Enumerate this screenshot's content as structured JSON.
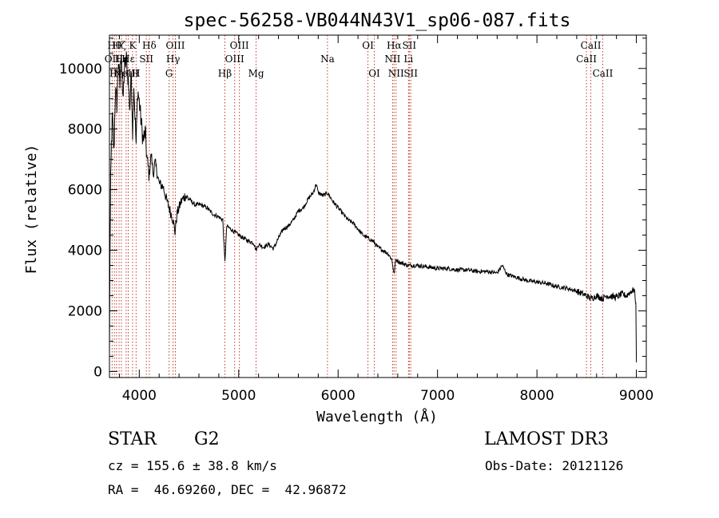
{
  "chart_data": {
    "type": "line",
    "title": "spec-56258-VB044N43V1_sp06-087.fits",
    "xlabel": "Wavelength (Å)",
    "ylabel": "Flux (relative)",
    "xlim": [
      3700,
      9100
    ],
    "ylim": [
      -200,
      11100
    ],
    "xticks": [
      4000,
      5000,
      6000,
      7000,
      8000,
      9000
    ],
    "yticks": [
      0,
      2000,
      4000,
      6000,
      8000,
      10000
    ],
    "spectrum_anchors": [
      [
        3700,
        400
      ],
      [
        3705,
        3800
      ],
      [
        3712,
        6200
      ],
      [
        3720,
        7500
      ],
      [
        3730,
        8400
      ],
      [
        3745,
        7200
      ],
      [
        3760,
        9300
      ],
      [
        3775,
        8800
      ],
      [
        3790,
        10300
      ],
      [
        3805,
        9400
      ],
      [
        3820,
        10700
      ],
      [
        3835,
        8800
      ],
      [
        3850,
        10000
      ],
      [
        3870,
        10300
      ],
      [
        3890,
        9600
      ],
      [
        3905,
        8700
      ],
      [
        3920,
        9900
      ],
      [
        3933,
        7900
      ],
      [
        3945,
        9500
      ],
      [
        3968,
        7500
      ],
      [
        3985,
        9300
      ],
      [
        4000,
        8900
      ],
      [
        4020,
        8200
      ],
      [
        4040,
        7600
      ],
      [
        4060,
        7900
      ],
      [
        4080,
        6900
      ],
      [
        4101,
        6500
      ],
      [
        4120,
        7200
      ],
      [
        4140,
        6500
      ],
      [
        4160,
        6900
      ],
      [
        4200,
        6200
      ],
      [
        4240,
        6100
      ],
      [
        4280,
        5600
      ],
      [
        4300,
        5400
      ],
      [
        4320,
        5200
      ],
      [
        4340,
        5000
      ],
      [
        4360,
        4600
      ],
      [
        4380,
        5200
      ],
      [
        4420,
        5600
      ],
      [
        4460,
        5800
      ],
      [
        4500,
        5700
      ],
      [
        4560,
        5500
      ],
      [
        4620,
        5500
      ],
      [
        4680,
        5400
      ],
      [
        4740,
        5200
      ],
      [
        4800,
        5100
      ],
      [
        4840,
        5000
      ],
      [
        4861,
        3600
      ],
      [
        4880,
        4800
      ],
      [
        4920,
        4700
      ],
      [
        4960,
        4600
      ],
      [
        5000,
        4500
      ],
      [
        5050,
        4400
      ],
      [
        5100,
        4300
      ],
      [
        5150,
        4250
      ],
      [
        5175,
        4000
      ],
      [
        5200,
        4200
      ],
      [
        5250,
        4100
      ],
      [
        5300,
        4200
      ],
      [
        5350,
        4050
      ],
      [
        5400,
        4400
      ],
      [
        5450,
        4700
      ],
      [
        5500,
        4800
      ],
      [
        5550,
        5000
      ],
      [
        5600,
        5300
      ],
      [
        5650,
        5400
      ],
      [
        5700,
        5700
      ],
      [
        5750,
        5900
      ],
      [
        5780,
        6200
      ],
      [
        5800,
        5900
      ],
      [
        5850,
        5800
      ],
      [
        5893,
        5900
      ],
      [
        5950,
        5600
      ],
      [
        6000,
        5400
      ],
      [
        6050,
        5200
      ],
      [
        6100,
        5000
      ],
      [
        6150,
        4900
      ],
      [
        6200,
        4700
      ],
      [
        6250,
        4500
      ],
      [
        6300,
        4400
      ],
      [
        6350,
        4300
      ],
      [
        6400,
        4100
      ],
      [
        6450,
        4000
      ],
      [
        6500,
        3900
      ],
      [
        6540,
        3700
      ],
      [
        6563,
        3200
      ],
      [
        6580,
        3700
      ],
      [
        6620,
        3600
      ],
      [
        6700,
        3500
      ],
      [
        6800,
        3500
      ],
      [
        6900,
        3450
      ],
      [
        7000,
        3400
      ],
      [
        7100,
        3400
      ],
      [
        7200,
        3350
      ],
      [
        7300,
        3350
      ],
      [
        7400,
        3300
      ],
      [
        7500,
        3300
      ],
      [
        7600,
        3250
      ],
      [
        7650,
        3500
      ],
      [
        7700,
        3200
      ],
      [
        7800,
        3100
      ],
      [
        7900,
        3000
      ],
      [
        8000,
        2950
      ],
      [
        8100,
        2900
      ],
      [
        8200,
        2800
      ],
      [
        8300,
        2750
      ],
      [
        8400,
        2650
      ],
      [
        8498,
        2500
      ],
      [
        8542,
        2400
      ],
      [
        8600,
        2500
      ],
      [
        8662,
        2400
      ],
      [
        8700,
        2500
      ],
      [
        8800,
        2450
      ],
      [
        8850,
        2550
      ],
      [
        8900,
        2500
      ],
      [
        8950,
        2650
      ],
      [
        8980,
        2700
      ],
      [
        8995,
        2200
      ],
      [
        9000,
        300
      ]
    ],
    "lines": [
      {
        "wl": 3727,
        "label": "OII",
        "row": 2
      },
      {
        "wl": 3750,
        "label": "Hθ",
        "row": 1
      },
      {
        "wl": 3771,
        "label": "Hη",
        "row": 3
      },
      {
        "wl": 3797,
        "label": "Hζ",
        "row": 1
      },
      {
        "wl": 3820,
        "label": "Hε",
        "row": 2
      },
      {
        "wl": 3868,
        "label": "NeIII",
        "row": 3
      },
      {
        "wl": 3889,
        "label": "Hε",
        "row": 2
      },
      {
        "wl": 3933,
        "label": "K",
        "row": 1
      },
      {
        "wl": 3968,
        "label": "H",
        "row": 3
      },
      {
        "wl": 4071,
        "label": "SII",
        "row": 2
      },
      {
        "wl": 4101,
        "label": "Hδ",
        "row": 1
      },
      {
        "wl": 4300,
        "label": "G",
        "row": 3
      },
      {
        "wl": 4340,
        "label": "Hγ",
        "row": 2
      },
      {
        "wl": 4363,
        "label": "OIII",
        "row": 1
      },
      {
        "wl": 4861,
        "label": "Hβ",
        "row": 3
      },
      {
        "wl": 4959,
        "label": "OIII",
        "row": 2
      },
      {
        "wl": 5007,
        "label": "OIII",
        "row": 1
      },
      {
        "wl": 5175,
        "label": "Mg",
        "row": 3
      },
      {
        "wl": 5893,
        "label": "Na",
        "row": 2
      },
      {
        "wl": 6300,
        "label": "OI",
        "row": 1
      },
      {
        "wl": 6364,
        "label": "OI",
        "row": 3
      },
      {
        "wl": 6548,
        "label": "NII",
        "row": 2
      },
      {
        "wl": 6563,
        "label": "Hα",
        "row": 1
      },
      {
        "wl": 6583,
        "label": "NII",
        "row": 3
      },
      {
        "wl": 6708,
        "label": "Li",
        "row": 2
      },
      {
        "wl": 6716,
        "label": "SII",
        "row": 1
      },
      {
        "wl": 6731,
        "label": "SII",
        "row": 3
      },
      {
        "wl": 8498,
        "label": "CaII",
        "row": 2
      },
      {
        "wl": 8542,
        "label": "CaII",
        "row": 1
      },
      {
        "wl": 8662,
        "label": "CaII",
        "row": 3
      }
    ]
  },
  "info": {
    "class": "STAR",
    "subclass": "G2",
    "cz": "cz = 155.6 ± 38.8 km/s",
    "radec": "RA =  46.69260, DEC =  42.96872",
    "survey": "LAMOST DR3",
    "obsdate": "Obs-Date: 20121126"
  }
}
